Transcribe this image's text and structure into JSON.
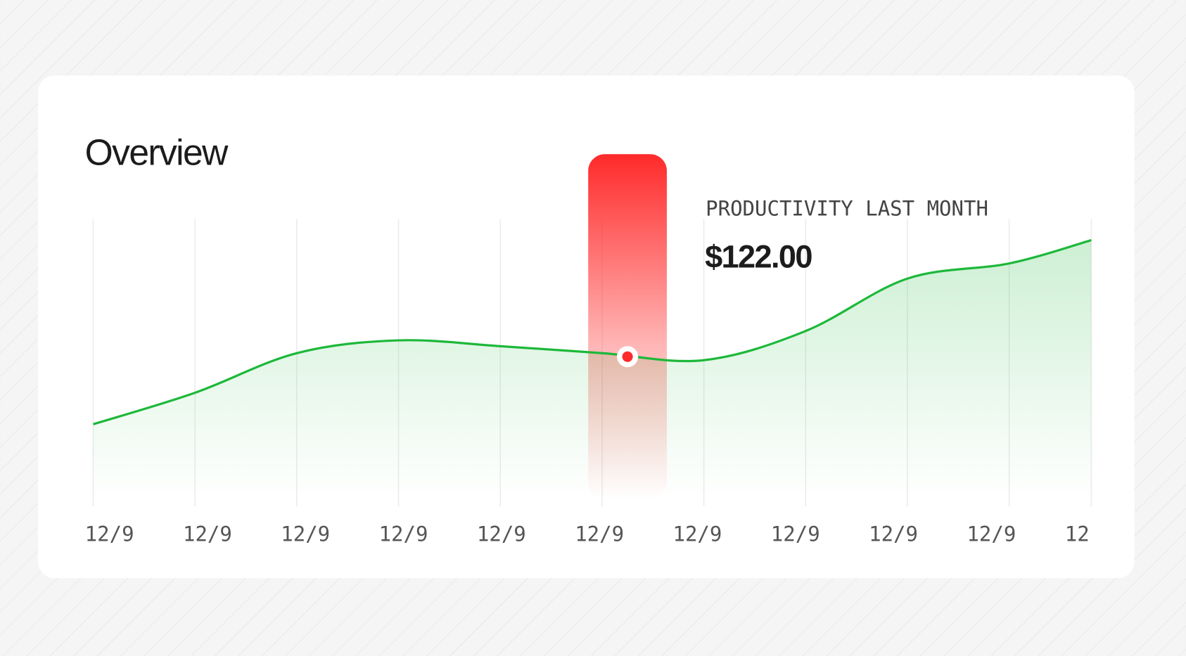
{
  "title": "Overview",
  "chart_data": {
    "type": "line",
    "categories": [
      "12/9",
      "12/9",
      "12/9",
      "12/9",
      "12/9",
      "12/9",
      "12/9",
      "12/9",
      "12/9",
      "12/9",
      "12"
    ],
    "series": [
      {
        "color": "#1db83a",
        "values": [
          64,
          91,
          125,
          136,
          131,
          125,
          119,
          144,
          189,
          202,
          222
        ]
      }
    ],
    "ylim": [
      0,
      240
    ],
    "grid": true,
    "highlight": {
      "label": "PRODUCTIVITY LAST MONTH",
      "value": 122,
      "value_label": "$122.00",
      "color": "#ff2a2a"
    }
  }
}
